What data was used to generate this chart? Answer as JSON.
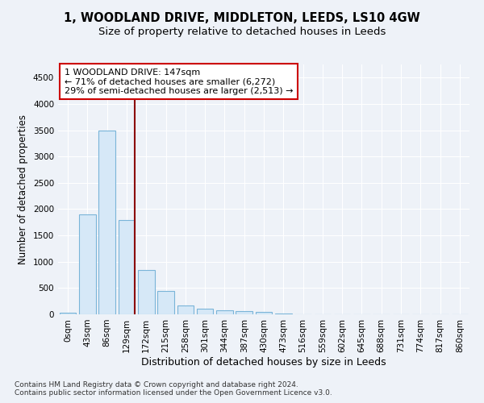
{
  "title": "1, WOODLAND DRIVE, MIDDLETON, LEEDS, LS10 4GW",
  "subtitle": "Size of property relative to detached houses in Leeds",
  "xlabel": "Distribution of detached houses by size in Leeds",
  "ylabel": "Number of detached properties",
  "footnote1": "Contains HM Land Registry data © Crown copyright and database right 2024.",
  "footnote2": "Contains public sector information licensed under the Open Government Licence v3.0.",
  "bar_categories": [
    "0sqm",
    "43sqm",
    "86sqm",
    "129sqm",
    "172sqm",
    "215sqm",
    "258sqm",
    "301sqm",
    "344sqm",
    "387sqm",
    "430sqm",
    "473sqm",
    "516sqm",
    "559sqm",
    "602sqm",
    "645sqm",
    "688sqm",
    "731sqm",
    "774sqm",
    "817sqm",
    "860sqm"
  ],
  "bar_values": [
    25,
    1900,
    3500,
    1800,
    850,
    450,
    170,
    100,
    75,
    60,
    40,
    20,
    0,
    0,
    0,
    0,
    0,
    0,
    0,
    0,
    0
  ],
  "bar_color": "#d6e8f7",
  "bar_edge_color": "#7ab4d8",
  "vline_x": 3.43,
  "vline_color": "#8b0000",
  "annotation_text_line1": "1 WOODLAND DRIVE: 147sqm",
  "annotation_text_line2": "← 71% of detached houses are smaller (6,272)",
  "annotation_text_line3": "29% of semi-detached houses are larger (2,513) →",
  "ylim": [
    0,
    4750
  ],
  "yticks": [
    0,
    500,
    1000,
    1500,
    2000,
    2500,
    3000,
    3500,
    4000,
    4500
  ],
  "bg_color": "#eef2f8",
  "plot_bg_color": "#eef2f8",
  "title_fontsize": 10.5,
  "subtitle_fontsize": 9.5,
  "annot_fontsize": 8,
  "tick_fontsize": 7.5,
  "xlabel_fontsize": 9,
  "ylabel_fontsize": 8.5
}
